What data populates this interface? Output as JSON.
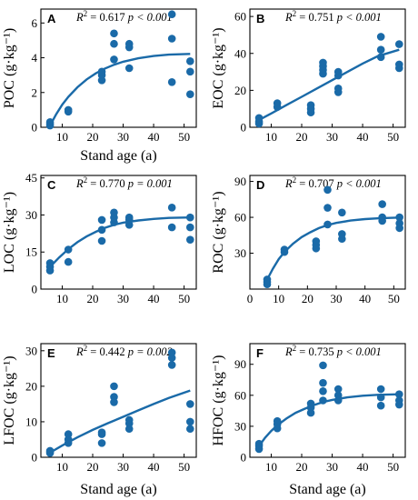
{
  "figure": {
    "accent_color": "#1a6aa8"
  },
  "chart_data": [
    {
      "type": "scatter",
      "panel_label": "A",
      "xlabel": "Stand age (a)",
      "ylabel": "POC (g·kg⁻¹)",
      "xlim": [
        3,
        54
      ],
      "ylim": [
        0,
        6.8
      ],
      "xticks": [
        10,
        20,
        30,
        40,
        50
      ],
      "yticks": [
        0,
        2,
        4,
        6
      ],
      "stat": {
        "r2": "0.617",
        "p": "p < 0.001"
      },
      "points": [
        [
          6,
          0.1
        ],
        [
          6,
          0.2
        ],
        [
          6,
          0.3
        ],
        [
          12,
          0.9
        ],
        [
          12,
          1.0
        ],
        [
          23,
          2.7
        ],
        [
          23,
          3.0
        ],
        [
          23,
          3.2
        ],
        [
          27,
          3.9
        ],
        [
          27,
          4.8
        ],
        [
          27,
          5.4
        ],
        [
          32,
          3.4
        ],
        [
          32,
          4.6
        ],
        [
          32,
          4.8
        ],
        [
          46,
          2.6
        ],
        [
          46,
          5.1
        ],
        [
          46,
          6.5
        ],
        [
          52,
          1.9
        ],
        [
          52,
          3.2
        ],
        [
          52,
          3.8
        ]
      ],
      "fit": [
        [
          6,
          0.1
        ],
        [
          8,
          0.75
        ],
        [
          10,
          1.3
        ],
        [
          12,
          1.75
        ],
        [
          15,
          2.3
        ],
        [
          18,
          2.75
        ],
        [
          21,
          3.1
        ],
        [
          24,
          3.38
        ],
        [
          27,
          3.6
        ],
        [
          30,
          3.77
        ],
        [
          35,
          3.97
        ],
        [
          40,
          4.1
        ],
        [
          45,
          4.18
        ],
        [
          52,
          4.22
        ]
      ]
    },
    {
      "type": "scatter",
      "panel_label": "B",
      "xlabel": "",
      "ylabel": "EOC (g·kg⁻¹)",
      "xlim": [
        3,
        54
      ],
      "ylim": [
        0,
        64
      ],
      "xticks": [
        10,
        20,
        30,
        40,
        50
      ],
      "yticks": [
        0,
        20,
        40,
        60
      ],
      "stat": {
        "r2": "0.751",
        "p": "p < 0.001"
      },
      "points": [
        [
          6,
          2
        ],
        [
          6,
          3
        ],
        [
          6,
          5
        ],
        [
          12,
          11
        ],
        [
          12,
          13
        ],
        [
          23,
          8
        ],
        [
          23,
          10
        ],
        [
          23,
          12
        ],
        [
          27,
          29
        ],
        [
          27,
          31
        ],
        [
          27,
          33
        ],
        [
          27,
          35
        ],
        [
          32,
          19
        ],
        [
          32,
          21
        ],
        [
          32,
          28
        ],
        [
          32,
          30
        ],
        [
          46,
          38
        ],
        [
          46,
          42
        ],
        [
          46,
          49
        ],
        [
          52,
          32
        ],
        [
          52,
          34
        ],
        [
          52,
          45
        ]
      ],
      "fit": [
        [
          6,
          4
        ],
        [
          10,
          7.5
        ],
        [
          15,
          12
        ],
        [
          20,
          16.5
        ],
        [
          25,
          21
        ],
        [
          30,
          25.5
        ],
        [
          35,
          30
        ],
        [
          40,
          34.5
        ],
        [
          45,
          38.5
        ],
        [
          52,
          42
        ]
      ]
    },
    {
      "type": "scatter",
      "panel_label": "C",
      "xlabel": "",
      "ylabel": "LOC (g·kg⁻¹)",
      "xlim": [
        3,
        54
      ],
      "ylim": [
        0,
        46
      ],
      "xticks": [
        10,
        20,
        30,
        40,
        50
      ],
      "yticks": [
        0,
        15,
        30,
        45
      ],
      "stat": {
        "r2": "0.770",
        "p": "p = 0.001"
      },
      "points": [
        [
          6,
          7.5
        ],
        [
          6,
          9
        ],
        [
          6,
          10.5
        ],
        [
          12,
          11
        ],
        [
          12,
          16
        ],
        [
          23,
          19.5
        ],
        [
          23,
          24
        ],
        [
          23,
          28
        ],
        [
          27,
          27
        ],
        [
          27,
          29
        ],
        [
          27,
          31
        ],
        [
          32,
          26
        ],
        [
          32,
          28
        ],
        [
          32,
          29
        ],
        [
          46,
          25
        ],
        [
          46,
          33
        ],
        [
          52,
          20
        ],
        [
          52,
          25
        ],
        [
          52,
          29
        ]
      ],
      "fit": [
        [
          6,
          9
        ],
        [
          9,
          12.8
        ],
        [
          12,
          16.2
        ],
        [
          15,
          19
        ],
        [
          18,
          21.3
        ],
        [
          21,
          23.2
        ],
        [
          24,
          24.8
        ],
        [
          27,
          26
        ],
        [
          30,
          26.9
        ],
        [
          35,
          27.8
        ],
        [
          40,
          28.4
        ],
        [
          45,
          28.8
        ],
        [
          52,
          29
        ]
      ]
    },
    {
      "type": "scatter",
      "panel_label": "D",
      "xlabel": "",
      "ylabel": "ROC (g·kg⁻¹)",
      "xlim": [
        0,
        54
      ],
      "ylim": [
        0,
        95
      ],
      "xticks": [
        0,
        10,
        20,
        30,
        40,
        50
      ],
      "yticks": [
        30,
        60,
        90
      ],
      "stat": {
        "r2": "0.707",
        "p": "p < 0.001"
      },
      "points": [
        [
          6,
          4
        ],
        [
          6,
          6
        ],
        [
          6,
          8
        ],
        [
          12,
          31
        ],
        [
          12,
          33
        ],
        [
          23,
          34
        ],
        [
          23,
          37
        ],
        [
          23,
          40
        ],
        [
          27,
          54
        ],
        [
          27,
          68
        ],
        [
          27,
          83
        ],
        [
          32,
          42
        ],
        [
          32,
          46
        ],
        [
          32,
          64
        ],
        [
          46,
          57
        ],
        [
          46,
          60
        ],
        [
          46,
          71
        ],
        [
          52,
          51
        ],
        [
          52,
          55
        ],
        [
          52,
          60
        ]
      ],
      "fit": [
        [
          6,
          8
        ],
        [
          8,
          17
        ],
        [
          10,
          25
        ],
        [
          12,
          31
        ],
        [
          15,
          38
        ],
        [
          18,
          43.5
        ],
        [
          21,
          47.5
        ],
        [
          24,
          51
        ],
        [
          27,
          53.5
        ],
        [
          30,
          55.3
        ],
        [
          35,
          57.3
        ],
        [
          40,
          58.5
        ],
        [
          45,
          59.2
        ],
        [
          52,
          59.8
        ]
      ]
    },
    {
      "type": "scatter",
      "panel_label": "E",
      "xlabel": "Stand age (a)",
      "ylabel": "LFOC (g·kg⁻¹)",
      "xlim": [
        3,
        54
      ],
      "ylim": [
        0,
        32
      ],
      "xticks": [
        10,
        20,
        30,
        40,
        50
      ],
      "yticks": [
        0,
        10,
        20,
        30
      ],
      "stat": {
        "r2": "0.442",
        "p": "p = 0.002"
      },
      "points": [
        [
          6,
          1.2
        ],
        [
          6,
          1.5
        ],
        [
          6,
          1.8
        ],
        [
          12,
          4
        ],
        [
          12,
          5
        ],
        [
          12,
          6.5
        ],
        [
          23,
          4
        ],
        [
          23,
          6.5
        ],
        [
          23,
          7
        ],
        [
          27,
          15.5
        ],
        [
          27,
          17
        ],
        [
          27,
          20
        ],
        [
          32,
          8
        ],
        [
          32,
          9.5
        ],
        [
          32,
          10.5
        ],
        [
          46,
          26
        ],
        [
          46,
          28
        ],
        [
          46,
          29.5
        ],
        [
          52,
          8
        ],
        [
          52,
          10
        ],
        [
          52,
          15
        ]
      ],
      "fit": [
        [
          6,
          1.3
        ],
        [
          10,
          3.3
        ],
        [
          15,
          5.6
        ],
        [
          20,
          7.7
        ],
        [
          25,
          9.6
        ],
        [
          30,
          11.4
        ],
        [
          35,
          13.2
        ],
        [
          40,
          15
        ],
        [
          45,
          16.7
        ],
        [
          52,
          18.8
        ]
      ]
    },
    {
      "type": "scatter",
      "panel_label": "F",
      "xlabel": "Stand age (a)",
      "ylabel": "HFOC (g·kg⁻¹)",
      "xlim": [
        3,
        54
      ],
      "ylim": [
        0,
        110
      ],
      "xticks": [
        10,
        20,
        30,
        40,
        50
      ],
      "yticks": [
        0,
        30,
        60,
        90
      ],
      "stat": {
        "r2": "0.735",
        "p": "p < 0.001"
      },
      "points": [
        [
          6,
          8
        ],
        [
          6,
          11
        ],
        [
          6,
          13
        ],
        [
          12,
          28
        ],
        [
          12,
          32
        ],
        [
          12,
          35
        ],
        [
          23,
          43
        ],
        [
          23,
          48
        ],
        [
          23,
          52
        ],
        [
          27,
          55
        ],
        [
          27,
          64
        ],
        [
          27,
          72
        ],
        [
          27,
          89
        ],
        [
          32,
          55
        ],
        [
          32,
          60
        ],
        [
          32,
          66
        ],
        [
          46,
          50
        ],
        [
          46,
          58
        ],
        [
          46,
          66
        ],
        [
          52,
          51
        ],
        [
          52,
          55
        ],
        [
          52,
          61
        ]
      ],
      "fit": [
        [
          6,
          11
        ],
        [
          8,
          19
        ],
        [
          10,
          25.5
        ],
        [
          12,
          31
        ],
        [
          15,
          37.5
        ],
        [
          18,
          43
        ],
        [
          21,
          47
        ],
        [
          24,
          50.5
        ],
        [
          27,
          53.5
        ],
        [
          30,
          55.5
        ],
        [
          35,
          58
        ],
        [
          40,
          59.6
        ],
        [
          45,
          60.5
        ],
        [
          52,
          61
        ]
      ]
    }
  ]
}
